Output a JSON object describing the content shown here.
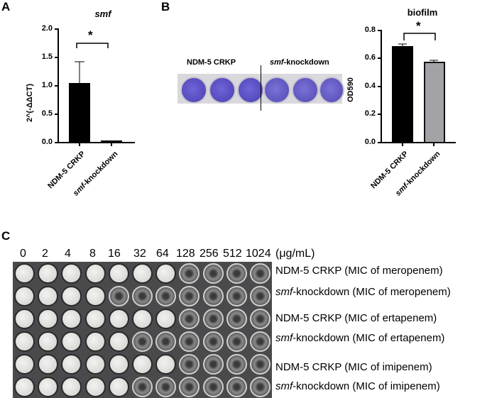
{
  "panels": {
    "A": {
      "letter": "A"
    },
    "B": {
      "letter": "B"
    },
    "C": {
      "letter": "C"
    }
  },
  "chart_data": [
    {
      "type": "bar",
      "panel": "A",
      "title": "smf",
      "xlabel": "",
      "ylabel": "2^(-ΔΔCT)",
      "ylim": [
        0,
        2.0
      ],
      "yticks": [
        "0.0",
        "0.5",
        "1.0",
        "1.5",
        "2.0"
      ],
      "categories": [
        "NDM-5 CRKP",
        "smf-knockdown"
      ],
      "values": [
        1.05,
        0.03
      ],
      "error_upper": [
        1.43,
        0.04
      ],
      "bar_colors": [
        "#000000",
        "#000000"
      ],
      "significance": "*"
    },
    {
      "type": "bar",
      "panel": "B",
      "title": "biofilm",
      "xlabel": "",
      "ylabel": "OD590",
      "ylim": [
        0,
        0.8
      ],
      "yticks": [
        "0.0",
        "0.2",
        "0.4",
        "0.6",
        "0.8"
      ],
      "categories": [
        "NDM-5 CRKP",
        "smf-knockdown"
      ],
      "values": [
        0.695,
        0.58
      ],
      "error_upper": [
        0.71,
        0.59
      ],
      "bar_colors": [
        "#000000",
        "#a3a2a7"
      ],
      "significance": "*"
    }
  ],
  "panelA": {
    "title": "smf",
    "ylabel": "2^(-ΔΔCT)",
    "yticks": [
      "0.0",
      "0.5",
      "1.0",
      "1.5",
      "2.0"
    ],
    "cat1": "NDM-5 CRKP",
    "cat2_italic": "smf",
    "cat2_rest": "-knockdown",
    "sig": "*"
  },
  "panelB": {
    "title": "biofilm",
    "ylabel": "OD590",
    "yticks": [
      "0.0",
      "0.2",
      "0.4",
      "0.6",
      "0.8"
    ],
    "cat1": "NDM-5 CRKP",
    "cat2_italic": "smf",
    "cat2_rest": "-knockdown",
    "sig": "*",
    "plate_label_left": "NDM-5 CRKP",
    "plate_label_right_italic": "smf",
    "plate_label_right_rest": "-knockdown",
    "stain_color": "#5a4fc4"
  },
  "panelC": {
    "concentrations": [
      "0",
      "2",
      "4",
      "8",
      "16",
      "32",
      "64",
      "128",
      "256",
      "512",
      "1024"
    ],
    "unit": "(μg/mL)",
    "rows": [
      {
        "strain_italic": "",
        "strain": "NDM-5 CRKP",
        "drug": " (MIC of meropenem)",
        "turbid_wells": 7
      },
      {
        "strain_italic": "smf",
        "strain": "-knockdown",
        "drug": " (MIC of meropenem)",
        "turbid_wells": 4
      },
      {
        "strain_italic": "",
        "strain": "NDM-5 CRKP",
        "drug": " (MIC of ertapenem)",
        "turbid_wells": 7
      },
      {
        "strain_italic": "smf",
        "strain": "-knockdown",
        "drug": " (MIC of ertapenem)",
        "turbid_wells": 5
      },
      {
        "strain_italic": "",
        "strain": "NDM-5 CRKP",
        "drug": " (MIC of imipenem)",
        "turbid_wells": 7
      },
      {
        "strain_italic": "smf",
        "strain": "-knockdown",
        "drug": " (MIC of imipenem)",
        "turbid_wells": 5
      }
    ]
  }
}
